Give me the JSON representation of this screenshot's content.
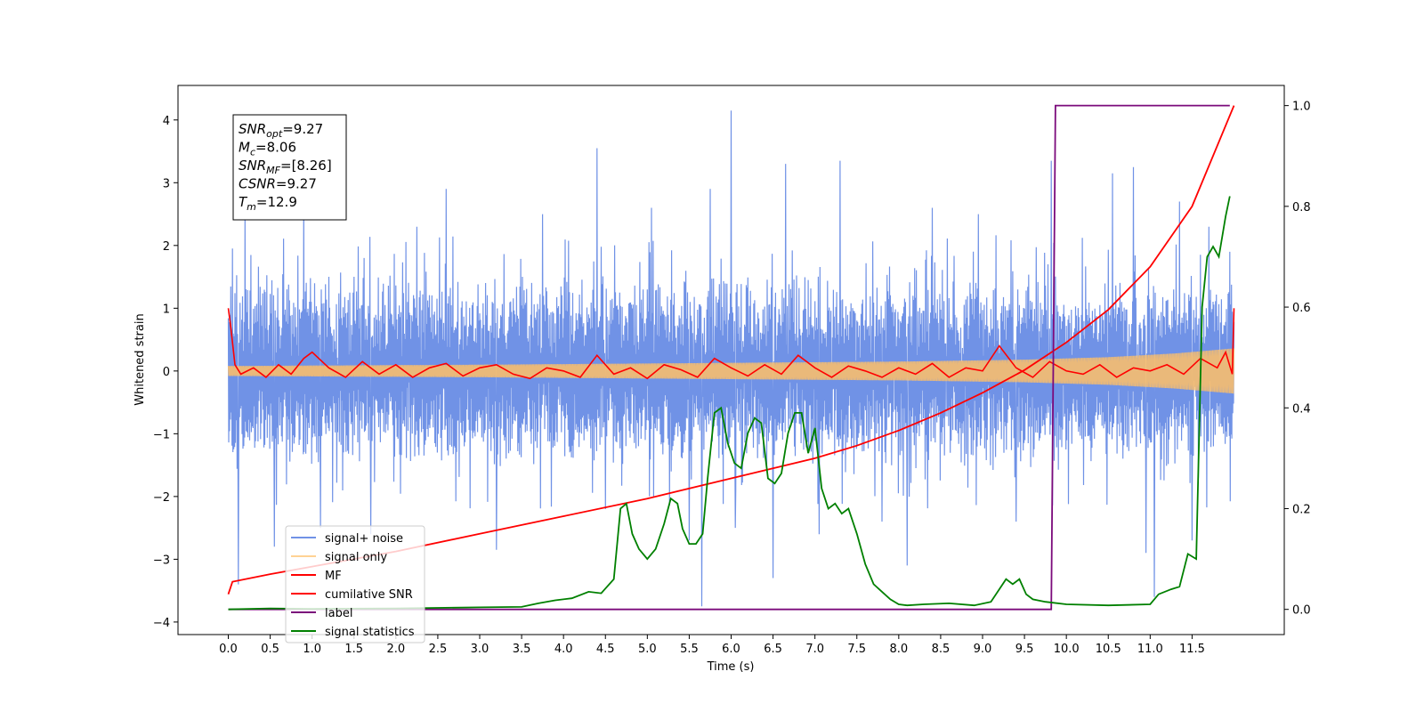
{
  "chart_data": {
    "type": "line",
    "title": "",
    "xlabel": "Time (s)",
    "ylabel": "Whitened strain",
    "ylabel_right": "",
    "xlim": [
      -0.6,
      12.6
    ],
    "ylim": [
      -4.2,
      4.55
    ],
    "ylim_right": [
      -0.05,
      1.04
    ],
    "x_ticks": [
      0.0,
      0.5,
      1.0,
      1.5,
      2.0,
      2.5,
      3.0,
      3.5,
      4.0,
      4.5,
      5.0,
      5.5,
      6.0,
      6.5,
      7.0,
      7.5,
      8.0,
      8.5,
      9.0,
      9.5,
      10.0,
      10.5,
      11.0,
      11.5
    ],
    "x_tick_labels": [
      "0.0",
      "0.5",
      "1.0",
      "1.5",
      "2.0",
      "2.5",
      "3.0",
      "3.5",
      "4.0",
      "4.5",
      "5.0",
      "5.5",
      "6.0",
      "6.5",
      "7.0",
      "7.5",
      "8.0",
      "8.5",
      "9.0",
      "9.5",
      "10.0",
      "10.5",
      "11.0",
      "11.5"
    ],
    "y_ticks": [
      -4,
      -3,
      -2,
      -1,
      0,
      1,
      2,
      3,
      4
    ],
    "y_tick_labels": [
      "−4",
      "−3",
      "−2",
      "−1",
      "0",
      "1",
      "2",
      "3",
      "4"
    ],
    "y_ticks_right": [
      0.0,
      0.2,
      0.4,
      0.6,
      0.8,
      1.0
    ],
    "y_tick_labels_right": [
      "0.0",
      "0.2",
      "0.4",
      "0.6",
      "0.8",
      "1.0"
    ],
    "grid": false,
    "legend_position": "lower-left",
    "annotation": {
      "lines": [
        {
          "main": "SNR",
          "sub": "opt",
          "value": "=9.27"
        },
        {
          "main": "M",
          "sub": "c",
          "value": "=8.06"
        },
        {
          "main": "SNR",
          "sub": "MF",
          "value": "=[8.26]"
        },
        {
          "main": "CSNR",
          "sub": "",
          "value": "=9.27"
        },
        {
          "main": "T",
          "sub": "m",
          "value": "=12.9"
        }
      ]
    },
    "series": [
      {
        "name": "signal+ noise",
        "color": "#7092e6",
        "axis": "left",
        "x_start": 0.0,
        "x_end": 12.0,
        "band_low": -1.25,
        "band_high": 1.25,
        "spikes": [
          {
            "x": 0.05,
            "y": 1.95
          },
          {
            "x": 0.12,
            "y": -3.4
          },
          {
            "x": 0.2,
            "y": 2.55
          },
          {
            "x": 0.55,
            "y": -2.8
          },
          {
            "x": 0.9,
            "y": 2.9
          },
          {
            "x": 1.1,
            "y": -2.5
          },
          {
            "x": 1.7,
            "y": -2.6
          },
          {
            "x": 2.25,
            "y": 2.3
          },
          {
            "x": 2.6,
            "y": 2.9
          },
          {
            "x": 3.2,
            "y": -2.85
          },
          {
            "x": 3.75,
            "y": 2.5
          },
          {
            "x": 4.4,
            "y": 3.55
          },
          {
            "x": 4.5,
            "y": -2.2
          },
          {
            "x": 5.05,
            "y": 2.6
          },
          {
            "x": 5.5,
            "y": -2.7
          },
          {
            "x": 5.65,
            "y": -3.75
          },
          {
            "x": 5.75,
            "y": 2.9
          },
          {
            "x": 6.0,
            "y": 4.15
          },
          {
            "x": 6.05,
            "y": -2.5
          },
          {
            "x": 6.5,
            "y": -3.3
          },
          {
            "x": 6.65,
            "y": 3.3
          },
          {
            "x": 7.05,
            "y": -2.6
          },
          {
            "x": 7.3,
            "y": 3.35
          },
          {
            "x": 7.8,
            "y": -2.4
          },
          {
            "x": 8.1,
            "y": -3.1
          },
          {
            "x": 8.4,
            "y": 2.6
          },
          {
            "x": 8.95,
            "y": 2.5
          },
          {
            "x": 9.4,
            "y": -2.4
          },
          {
            "x": 9.82,
            "y": 3.35
          },
          {
            "x": 10.55,
            "y": 3.15
          },
          {
            "x": 10.8,
            "y": 3.25
          },
          {
            "x": 10.95,
            "y": -2.9
          },
          {
            "x": 11.05,
            "y": -3.6
          },
          {
            "x": 11.35,
            "y": 2.7
          },
          {
            "x": 11.5,
            "y": -2.7
          },
          {
            "x": 11.7,
            "y": 2.3
          },
          {
            "x": 11.95,
            "y": 1.9
          }
        ]
      },
      {
        "name": "signal only",
        "color": "#ffbf66",
        "axis": "left",
        "envelope_x": [
          0.0,
          3.0,
          6.0,
          8.0,
          9.5,
          10.5,
          11.3,
          12.0
        ],
        "envelope_y": [
          0.08,
          0.1,
          0.13,
          0.15,
          0.18,
          0.22,
          0.28,
          0.36
        ]
      },
      {
        "name": "MF",
        "color": "#ff0000",
        "axis": "left",
        "x": [
          0.0,
          0.03,
          0.08,
          0.15,
          0.3,
          0.45,
          0.6,
          0.75,
          0.9,
          1.0,
          1.2,
          1.4,
          1.6,
          1.8,
          2.0,
          2.2,
          2.4,
          2.6,
          2.8,
          3.0,
          3.2,
          3.4,
          3.6,
          3.8,
          4.0,
          4.2,
          4.4,
          4.6,
          4.8,
          5.0,
          5.2,
          5.4,
          5.6,
          5.8,
          6.0,
          6.2,
          6.4,
          6.6,
          6.8,
          7.0,
          7.2,
          7.4,
          7.6,
          7.8,
          8.0,
          8.2,
          8.4,
          8.6,
          8.8,
          9.0,
          9.2,
          9.4,
          9.6,
          9.8,
          10.0,
          10.2,
          10.4,
          10.6,
          10.8,
          11.0,
          11.2,
          11.4,
          11.6,
          11.8,
          11.9,
          11.98,
          12.0
        ],
        "y": [
          1.0,
          0.7,
          0.1,
          -0.05,
          0.05,
          -0.1,
          0.1,
          -0.05,
          0.2,
          0.3,
          0.05,
          -0.1,
          0.15,
          -0.05,
          0.1,
          -0.1,
          0.05,
          0.12,
          -0.08,
          0.05,
          0.1,
          -0.05,
          -0.12,
          0.05,
          0.0,
          -0.1,
          0.25,
          -0.05,
          0.05,
          -0.12,
          0.1,
          0.02,
          -0.1,
          0.2,
          0.05,
          -0.08,
          0.1,
          -0.05,
          0.25,
          0.05,
          -0.1,
          0.08,
          0.0,
          -0.1,
          0.05,
          -0.05,
          0.12,
          -0.1,
          0.05,
          0.0,
          0.4,
          0.05,
          -0.1,
          0.15,
          0.0,
          -0.05,
          0.1,
          -0.1,
          0.05,
          0.0,
          0.1,
          -0.05,
          0.2,
          0.05,
          0.3,
          -0.05,
          1.0
        ]
      },
      {
        "name": "cumilative SNR",
        "color": "#ff0000",
        "axis": "right",
        "x": [
          0.0,
          0.05,
          0.5,
          1.0,
          2.0,
          3.0,
          4.0,
          5.0,
          6.0,
          7.0,
          7.5,
          8.0,
          8.5,
          9.0,
          9.5,
          10.0,
          10.5,
          11.0,
          11.5,
          12.0
        ],
        "y": [
          0.03,
          0.055,
          0.07,
          0.085,
          0.115,
          0.15,
          0.185,
          0.22,
          0.26,
          0.3,
          0.325,
          0.355,
          0.39,
          0.43,
          0.475,
          0.53,
          0.595,
          0.68,
          0.8,
          1.0
        ]
      },
      {
        "name": "label",
        "color": "#7b0a7b",
        "axis": "right",
        "x": [
          0.0,
          9.82,
          9.87,
          11.95
        ],
        "y": [
          0.0,
          0.0,
          1.0,
          1.0
        ]
      },
      {
        "name": "signal statistics",
        "color": "#008000",
        "axis": "right",
        "x": [
          0.0,
          0.5,
          1.0,
          2.0,
          3.0,
          3.5,
          3.7,
          3.9,
          4.1,
          4.3,
          4.45,
          4.6,
          4.68,
          4.75,
          4.82,
          4.9,
          5.0,
          5.1,
          5.2,
          5.28,
          5.36,
          5.42,
          5.5,
          5.58,
          5.66,
          5.72,
          5.8,
          5.88,
          5.96,
          6.04,
          6.12,
          6.2,
          6.28,
          6.36,
          6.44,
          6.52,
          6.6,
          6.68,
          6.76,
          6.84,
          6.92,
          7.0,
          7.08,
          7.16,
          7.24,
          7.32,
          7.4,
          7.5,
          7.6,
          7.7,
          7.8,
          7.9,
          8.0,
          8.1,
          8.3,
          8.6,
          8.9,
          9.1,
          9.2,
          9.28,
          9.36,
          9.44,
          9.52,
          9.6,
          9.75,
          10.0,
          10.5,
          11.0,
          11.1,
          11.25,
          11.35,
          11.45,
          11.55,
          11.62,
          11.68,
          11.75,
          11.82,
          11.9,
          11.95
        ],
        "y": [
          0.0,
          0.002,
          0.001,
          0.002,
          0.004,
          0.005,
          0.012,
          0.018,
          0.022,
          0.035,
          0.032,
          0.06,
          0.2,
          0.21,
          0.15,
          0.12,
          0.1,
          0.12,
          0.17,
          0.22,
          0.21,
          0.16,
          0.13,
          0.13,
          0.15,
          0.26,
          0.39,
          0.4,
          0.33,
          0.29,
          0.28,
          0.35,
          0.38,
          0.37,
          0.26,
          0.25,
          0.27,
          0.35,
          0.39,
          0.39,
          0.31,
          0.36,
          0.24,
          0.2,
          0.21,
          0.19,
          0.2,
          0.15,
          0.09,
          0.05,
          0.035,
          0.02,
          0.01,
          0.008,
          0.01,
          0.012,
          0.008,
          0.015,
          0.04,
          0.06,
          0.05,
          0.06,
          0.03,
          0.02,
          0.015,
          0.01,
          0.008,
          0.01,
          0.03,
          0.04,
          0.045,
          0.11,
          0.1,
          0.6,
          0.7,
          0.72,
          0.7,
          0.78,
          0.82
        ]
      }
    ]
  }
}
